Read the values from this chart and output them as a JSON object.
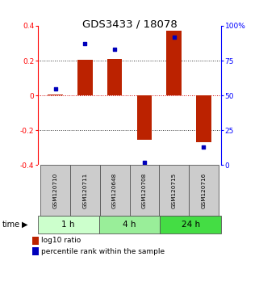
{
  "title": "GDS3433 / 18078",
  "samples": [
    "GSM120710",
    "GSM120711",
    "GSM120648",
    "GSM120708",
    "GSM120715",
    "GSM120716"
  ],
  "log10_ratio": [
    0.005,
    0.205,
    0.21,
    -0.255,
    0.37,
    -0.27
  ],
  "percentile_rank": [
    55,
    87,
    83,
    2,
    92,
    13
  ],
  "time_groups": [
    {
      "label": "1 h",
      "start": 0,
      "end": 2,
      "color": "#ccffcc"
    },
    {
      "label": "4 h",
      "start": 2,
      "end": 4,
      "color": "#99ee99"
    },
    {
      "label": "24 h",
      "start": 4,
      "end": 6,
      "color": "#44dd44"
    }
  ],
  "ylim_left": [
    -0.4,
    0.4
  ],
  "ylim_right": [
    0,
    100
  ],
  "yticks_left": [
    -0.4,
    -0.2,
    0.0,
    0.2,
    0.4
  ],
  "yticks_right": [
    0,
    25,
    50,
    75,
    100
  ],
  "ytick_labels_left": [
    "-0.4",
    "-0.2",
    "0",
    "0.2",
    "0.4"
  ],
  "ytick_labels_right": [
    "0",
    "25",
    "50",
    "75",
    "100%"
  ],
  "bar_color": "#bb2200",
  "dot_color": "#0000bb",
  "dotted_line_color": "#333333",
  "zero_line_color": "#cc0000",
  "bg_sample_color": "#cccccc",
  "bg_sample_border": "#555555"
}
